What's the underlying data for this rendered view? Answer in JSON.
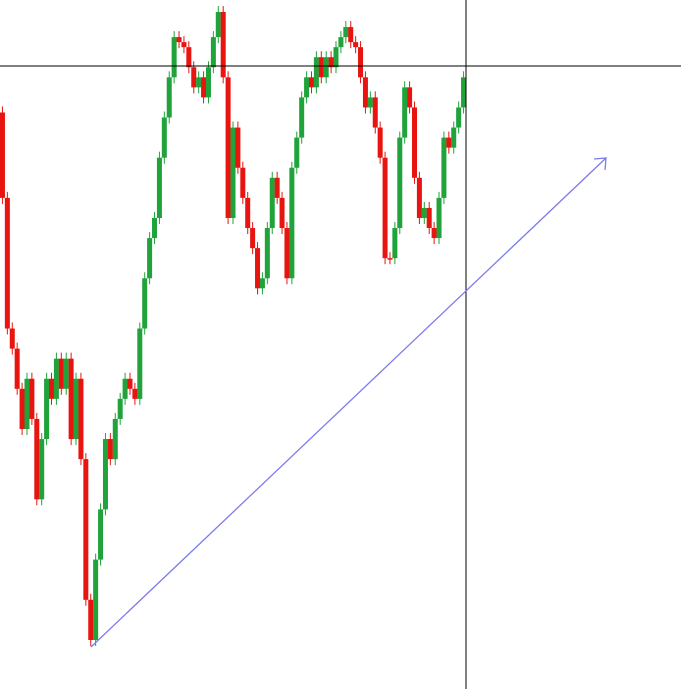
{
  "chart_data": {
    "type": "candlestick",
    "up_color": "#1fa33a",
    "down_color": "#e8140f",
    "values": [
      574,
      489,
      359,
      339,
      299,
      259,
      309,
      269,
      189,
      249,
      309,
      289,
      329,
      299,
      329,
      249,
      309,
      229,
      89,
      49,
      129,
      179,
      249,
      229,
      269,
      289,
      309,
      299,
      289,
      359,
      409,
      449,
      469,
      529,
      569,
      609,
      649,
      644,
      639,
      619,
      599,
      609,
      589,
      619,
      649,
      674,
      609,
      469,
      559,
      519,
      489,
      459,
      439,
      399,
      409,
      459,
      509,
      489,
      459,
      409,
      519,
      549,
      589,
      609,
      599,
      629,
      609,
      629,
      619,
      639,
      649,
      659,
      644,
      639,
      609,
      579,
      589,
      559,
      529,
      429,
      429,
      459,
      549,
      599,
      579,
      509,
      469,
      479,
      459,
      449,
      489,
      549,
      539,
      559,
      579,
      609
    ]
  }
}
